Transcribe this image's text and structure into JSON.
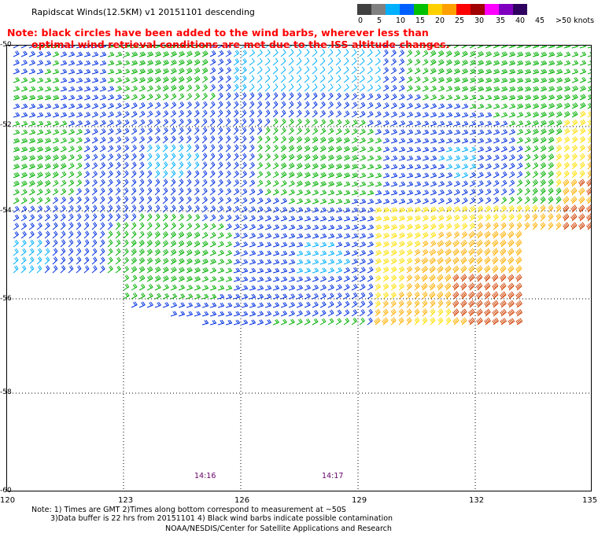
{
  "title": "Rapidscat Winds(12.5KM) v1 20151101 descending",
  "warning_line1": "Note: black circles have been added to the wind barbs, wherever less than",
  "warning_line2": "optimal wind retrieval conditions are met due to the ISS altitude changes.",
  "legend": {
    "labels": [
      "0",
      "5",
      "10",
      "15",
      "20",
      "25",
      "30",
      "35",
      "40",
      "45",
      ">50 knots"
    ],
    "colors": [
      "#404040",
      "#808080",
      "#00b0ff",
      "#0060ff",
      "#00c000",
      "#ffd000",
      "#ffa000",
      "#ff0000",
      "#a00000",
      "#ff00ff",
      "#8000c0",
      "#300060"
    ]
  },
  "map": {
    "lat_labels": [
      "-50",
      "-52",
      "-54",
      "-56",
      "-58",
      "-60"
    ],
    "lon_labels": [
      "120",
      "123",
      "126",
      "129",
      "132",
      "135"
    ],
    "time_labels": [
      "14:16",
      "14:17"
    ]
  },
  "footer": {
    "note1": "Note: 1) Times are GMT 2)Times along bottom correspond to measurement at ~50S",
    "note2": "3)Data buffer is 22 hrs from 20151101 4) Black wind barbs indicate possible contamination",
    "credit": "NOAA/NESDIS/Center for Satellite Applications and Research"
  }
}
